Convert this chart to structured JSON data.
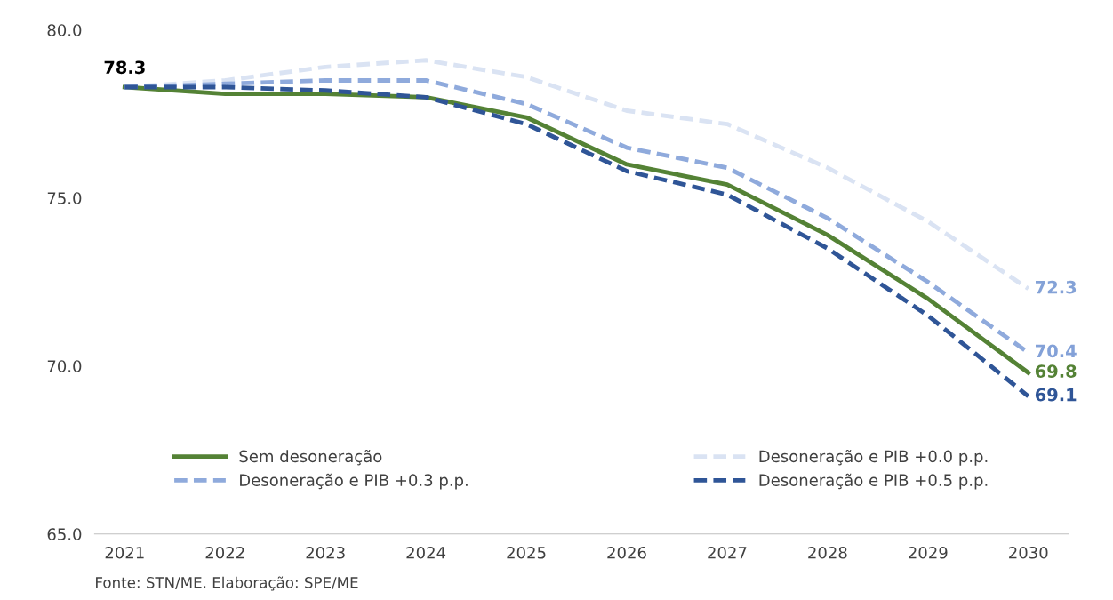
{
  "chart_data": {
    "type": "line",
    "categories": [
      "2021",
      "2022",
      "2023",
      "2024",
      "2025",
      "2026",
      "2027",
      "2028",
      "2029",
      "2030"
    ],
    "series": [
      {
        "name": "Sem desoneração",
        "color": "#548235",
        "line_style": "solid",
        "values": [
          78.3,
          78.1,
          78.1,
          78.0,
          77.4,
          76.0,
          75.4,
          73.9,
          72.0,
          69.8
        ],
        "value_labels": [
          null,
          null,
          null,
          null,
          null,
          null,
          null,
          null,
          null,
          "69.8"
        ]
      },
      {
        "name": "Desoneração e PIB +0.0 p.p.",
        "color": "#dae3f3",
        "line_style": "dashed",
        "values": [
          78.3,
          78.5,
          78.9,
          79.1,
          78.6,
          77.6,
          77.2,
          75.9,
          74.3,
          72.3
        ],
        "value_labels": [
          null,
          null,
          null,
          null,
          null,
          null,
          null,
          null,
          null,
          "72.3"
        ]
      },
      {
        "name": "Desoneração e PIB +0.3 p.p.",
        "color": "#8faadc",
        "line_style": "dashed",
        "values": [
          78.3,
          78.4,
          78.5,
          78.5,
          77.8,
          76.5,
          75.9,
          74.4,
          72.5,
          70.4
        ],
        "value_labels": [
          null,
          null,
          null,
          null,
          null,
          null,
          null,
          null,
          null,
          "70.4"
        ]
      },
      {
        "name": "Desoneração e PIB +0.5 p.p.",
        "color": "#2f5597",
        "line_style": "dashed",
        "values": [
          78.3,
          78.3,
          78.2,
          78.0,
          77.2,
          75.8,
          75.1,
          73.5,
          71.5,
          69.1
        ],
        "value_labels": [
          null,
          null,
          null,
          null,
          null,
          null,
          null,
          null,
          null,
          "69.1"
        ]
      }
    ],
    "ylim": [
      65,
      80
    ],
    "yticks": [
      {
        "value": 65,
        "label": "65.0"
      },
      {
        "value": 70,
        "label": "70.0"
      },
      {
        "value": 75,
        "label": "75.0"
      },
      {
        "value": 80,
        "label": "80.0"
      }
    ],
    "grid": false,
    "legend": "bottom",
    "marker": "none",
    "annotations": [
      {
        "text": "78.3",
        "x": "2021",
        "y": 78.3
      },
      "Fonte: STN/ME. Elaboração: SPE/ME"
    ]
  }
}
